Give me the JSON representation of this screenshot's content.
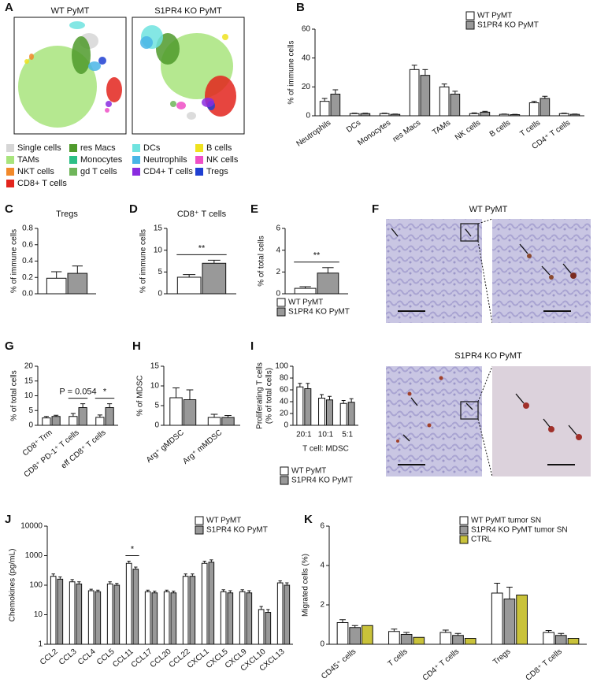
{
  "tsne": {
    "panel": "A",
    "plots": [
      {
        "title": "WT PyMT"
      },
      {
        "title": "S1PR4 KO PyMT"
      }
    ],
    "legend": [
      {
        "name": "Single cells",
        "color": "#d6d6d6"
      },
      {
        "name": "res Macs",
        "color": "#4f9a2c"
      },
      {
        "name": "DCs",
        "color": "#6fe3df"
      },
      {
        "name": "B cells",
        "color": "#efe21e"
      },
      {
        "name": "TAMs",
        "color": "#a8e47c"
      },
      {
        "name": "Monocytes",
        "color": "#2dbf86"
      },
      {
        "name": "Neutrophils",
        "color": "#49b5e6"
      },
      {
        "name": "NK cells",
        "color": "#ef4fc6"
      },
      {
        "name": "NKT cells",
        "color": "#f2892a"
      },
      {
        "name": "gd T cells",
        "color": "#6fb55a"
      },
      {
        "name": "CD4+ T cells",
        "color": "#8a2ce0"
      },
      {
        "name": "Tregs",
        "color": "#1f3fd2"
      },
      {
        "name": "CD8+ T cells",
        "color": "#e3251d"
      }
    ]
  },
  "micrographs": {
    "panel": "F",
    "rows": [
      {
        "title": "WT PyMT"
      },
      {
        "title": "S1PR4 KO PyMT"
      }
    ]
  },
  "chart_data": [
    {
      "type": "bar",
      "panel": "B",
      "ylabel": "% of immune cells",
      "categories": [
        "Neutrophils",
        "DCs",
        "Monocytes",
        "res Macs",
        "TAMs",
        "NK cells",
        "B cells",
        "T cells",
        "CD4⁺ T cells"
      ],
      "series": [
        {
          "name": "WT PyMT",
          "color": "#ffffff",
          "values": [
            10,
            1.5,
            1.5,
            32,
            20,
            1.5,
            1,
            9,
            1.5
          ],
          "errors": [
            2,
            0.3,
            0.3,
            3,
            2,
            0.5,
            0.2,
            1,
            0.3
          ]
        },
        {
          "name": "S1PR4 KO PyMT",
          "color": "#999999",
          "values": [
            15,
            1.5,
            1,
            28,
            15,
            2.5,
            0.8,
            12,
            1
          ],
          "errors": [
            3,
            0.3,
            0.2,
            4,
            2,
            0.6,
            0.2,
            1.5,
            0.2
          ]
        }
      ],
      "ylim": [
        0,
        60
      ],
      "yticks": [
        0,
        20,
        40,
        60
      ]
    },
    {
      "type": "bar",
      "panel": "C",
      "title": "Tregs",
      "ylabel": "% of immune cells",
      "categories": [
        null
      ],
      "series": [
        {
          "color": "#ffffff",
          "values": [
            0.19
          ],
          "errors": [
            0.08
          ]
        },
        {
          "color": "#999999",
          "values": [
            0.25
          ],
          "errors": [
            0.09
          ]
        }
      ],
      "ylim": [
        0,
        0.8
      ],
      "yticks": [
        {
          "value": 0,
          "label": "0.0"
        },
        0.2,
        0.4,
        0.6,
        0.8
      ]
    },
    {
      "type": "bar",
      "panel": "D",
      "title": "CD8⁺ T cells",
      "ylabel": "% of immune cells",
      "categories": [
        null
      ],
      "series": [
        {
          "color": "#ffffff",
          "values": [
            3.8
          ],
          "errors": [
            0.6
          ]
        },
        {
          "color": "#999999",
          "values": [
            7
          ],
          "errors": [
            0.7
          ]
        }
      ],
      "annotations": [
        {
          "text": "**",
          "category": null
        }
      ],
      "ylim": [
        0,
        15
      ],
      "yticks": [
        0,
        5,
        10,
        15
      ]
    },
    {
      "type": "bar",
      "panel": "E",
      "ylabel": "% of total cells",
      "categories": [
        null
      ],
      "series": [
        {
          "name": "WT PyMT",
          "color": "#ffffff",
          "values": [
            0.5
          ],
          "errors": [
            0.15
          ]
        },
        {
          "name": "S1PR4 KO PyMT",
          "color": "#999999",
          "values": [
            1.9
          ],
          "errors": [
            0.5
          ]
        }
      ],
      "annotations": [
        {
          "text": "**",
          "category": null
        }
      ],
      "ylim": [
        0,
        6
      ],
      "yticks": [
        0,
        2,
        4,
        6
      ]
    },
    {
      "type": "bar",
      "panel": "G",
      "ylabel": "% of total cells",
      "categories": [
        "CD8⁺ Trm",
        "CD8⁺ PD-1⁺ T cells",
        "eff CD8⁺ T cells"
      ],
      "series": [
        {
          "color": "#ffffff",
          "values": [
            2.5,
            3,
            2.7
          ],
          "errors": [
            0.5,
            1,
            0.8
          ]
        },
        {
          "color": "#999999",
          "values": [
            3,
            6,
            6
          ],
          "errors": [
            0.4,
            1.3,
            1.3
          ]
        }
      ],
      "annotations": [
        {
          "text": "P = 0.054",
          "category": "CD8⁺ PD-1⁺ T cells"
        },
        {
          "text": "*",
          "category": "eff CD8⁺ T cells"
        }
      ],
      "ylim": [
        0,
        20
      ],
      "yticks": [
        0,
        5,
        10,
        15,
        20
      ]
    },
    {
      "type": "bar",
      "panel": "H",
      "ylabel": "% of MDSC",
      "categories": [
        "Arg⁺ gMDSC",
        "Arg⁺ mMDSC"
      ],
      "series": [
        {
          "color": "#ffffff",
          "values": [
            7,
            2
          ],
          "errors": [
            2.5,
            0.8
          ]
        },
        {
          "color": "#999999",
          "values": [
            6.5,
            2
          ],
          "errors": [
            2.5,
            0.5
          ]
        }
      ],
      "ylim": [
        0,
        15
      ],
      "yticks": [
        0,
        5,
        10,
        15
      ]
    },
    {
      "type": "bar",
      "panel": "I",
      "ylabel": [
        "Proliferating T cells",
        "(% of total cells)"
      ],
      "xlabel": "T cell: MDSC",
      "categories": [
        "20:1",
        "10:1",
        "5:1"
      ],
      "series": [
        {
          "name": "WT PyMT",
          "color": "#ffffff",
          "values": [
            65,
            46,
            37
          ],
          "errors": [
            6,
            6,
            5
          ]
        },
        {
          "name": "S1PR4 KO PyMT",
          "color": "#999999",
          "values": [
            62,
            43,
            39
          ],
          "errors": [
            9,
            6,
            6
          ]
        }
      ],
      "ylim": [
        0,
        100
      ],
      "yticks": [
        0,
        20,
        40,
        60,
        80,
        100
      ]
    },
    {
      "type": "bar",
      "panel": "J",
      "ylabel": "Chemokines (pg/mL)",
      "log": true,
      "categories": [
        "CCL2",
        "CCL3",
        "CCL4",
        "CCL5",
        "CCL11",
        "CCL17",
        "CCL20",
        "CCL22",
        "CXCL1",
        "CXCL5",
        "CXCL9",
        "CXCL10",
        "CXCL13"
      ],
      "series": [
        {
          "name": "WT PyMT",
          "color": "#ffffff",
          "values": [
            200,
            130,
            65,
            110,
            550,
            60,
            60,
            200,
            550,
            60,
            60,
            15,
            120
          ],
          "errors": [
            40,
            25,
            8,
            20,
            100,
            8,
            8,
            40,
            100,
            10,
            10,
            4,
            20
          ]
        },
        {
          "name": "S1PR4 KO PyMT",
          "color": "#999999",
          "values": [
            160,
            110,
            60,
            100,
            350,
            55,
            55,
            200,
            600,
            55,
            55,
            12,
            100
          ],
          "errors": [
            30,
            20,
            8,
            15,
            60,
            8,
            8,
            40,
            120,
            10,
            10,
            3,
            20
          ]
        }
      ],
      "annotations": [
        {
          "text": "*",
          "category": "CCL11"
        }
      ],
      "ylim": [
        1,
        10000
      ],
      "yticks": [
        1,
        10,
        100,
        1000,
        10000
      ]
    },
    {
      "type": "bar",
      "panel": "K",
      "ylabel": "Migrated cells (%)",
      "categories": [
        "CD45⁺ cells",
        "T cells",
        "CD4⁺ T cells",
        "Tregs",
        "CD8⁺ T cells"
      ],
      "series": [
        {
          "name": "WT PyMT tumor SN",
          "color": "#ffffff",
          "values": [
            1.1,
            0.65,
            0.6,
            2.6,
            0.6
          ],
          "errors": [
            0.15,
            0.12,
            0.12,
            0.5,
            0.1
          ]
        },
        {
          "name": "S1PR4 KO PyMT tumor SN",
          "color": "#999999",
          "values": [
            0.85,
            0.5,
            0.45,
            2.3,
            0.45
          ],
          "errors": [
            0.1,
            0.1,
            0.1,
            0.6,
            0.1
          ]
        },
        {
          "name": "CTRL",
          "color": "#c9c23a",
          "values": [
            0.95,
            0.35,
            0.3,
            2.5,
            0.3
          ]
        }
      ],
      "ylim": [
        0,
        6
      ],
      "yticks": [
        0,
        2,
        4,
        6
      ]
    }
  ]
}
